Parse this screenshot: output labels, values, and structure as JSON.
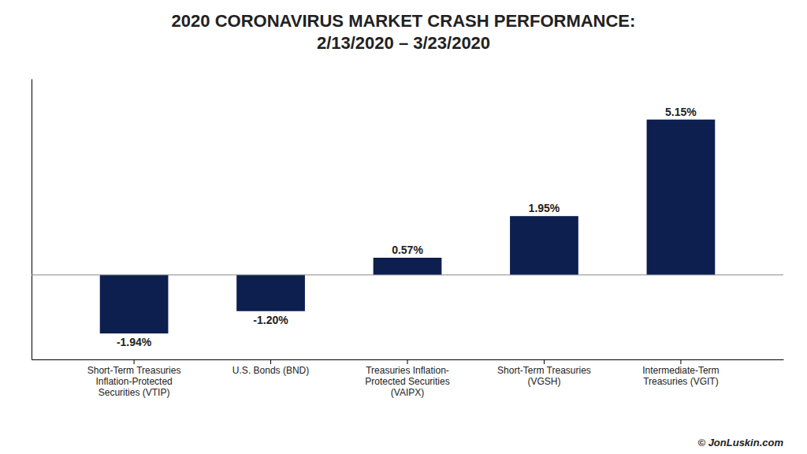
{
  "chart_data": {
    "type": "bar",
    "title": "2020 CORONAVIRUS MARKET CRASH PERFORMANCE:",
    "subtitle": "2/13/2020 – 3/23/2020",
    "categories": [
      "Short-Term Treasuries\nInflation-Protected\nSecurities (VTIP)",
      "U.S. Bonds (BND)",
      "Treasuries Inflation-\nProtected Securities\n(VAIPX)",
      "Short-Term Treasuries\n(VGSH)",
      "Intermediate-Term\nTreasuries (VGIT)"
    ],
    "values": [
      -1.94,
      -1.2,
      0.57,
      1.95,
      5.15
    ],
    "value_labels": [
      "-1.94%",
      "-1.20%",
      "0.57%",
      "1.95%",
      "5.15%"
    ],
    "data_labels": true,
    "color": "#0D1F4E",
    "ylim": [
      -2.8,
      6.5
    ],
    "tick_labels": "x",
    "annotations": [
      "© JonLuskin.com"
    ]
  }
}
